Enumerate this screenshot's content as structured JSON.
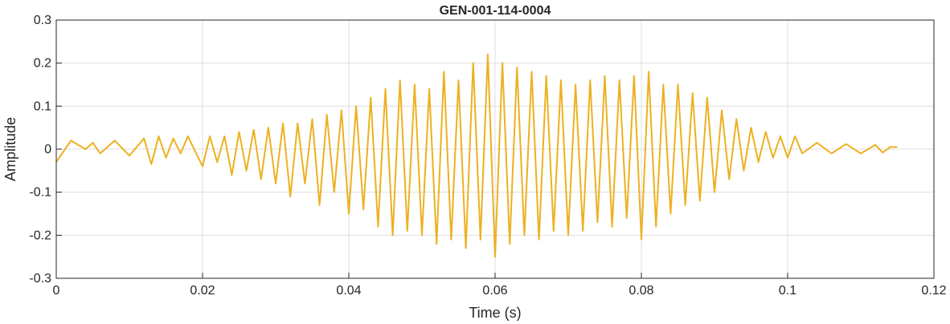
{
  "chart_data": {
    "type": "line",
    "title": "GEN-001-114-0004",
    "xlabel": "Time (s)",
    "ylabel": "Amplitude",
    "xlim": [
      0,
      0.12
    ],
    "ylim": [
      -0.3,
      0.3
    ],
    "x_ticks": [
      0,
      0.02,
      0.04,
      0.06,
      0.08,
      0.1,
      0.12
    ],
    "x_tick_labels": [
      "0",
      "0.02",
      "0.04",
      "0.06",
      "0.08",
      "0.1",
      "0.12"
    ],
    "y_ticks": [
      -0.3,
      -0.2,
      -0.1,
      0,
      0.1,
      0.2,
      0.3
    ],
    "y_tick_labels": [
      "-0.3",
      "-0.2",
      "-0.1",
      "0",
      "0.1",
      "0.2",
      "0.3"
    ],
    "grid": true,
    "line_color": "#EDB120",
    "series": [
      {
        "x": [
          0,
          0.002,
          0.004,
          0.005,
          0.006,
          0.008,
          0.01,
          0.012,
          0.013,
          0.014,
          0.015,
          0.016,
          0.017,
          0.018,
          0.02,
          0.021,
          0.022,
          0.023,
          0.024,
          0.025,
          0.026,
          0.027,
          0.028,
          0.029,
          0.03,
          0.031,
          0.032,
          0.033,
          0.034,
          0.035,
          0.036,
          0.037,
          0.038,
          0.039,
          0.04,
          0.041,
          0.042,
          0.043,
          0.044,
          0.045,
          0.046,
          0.047,
          0.048,
          0.049,
          0.05,
          0.051,
          0.052,
          0.053,
          0.054,
          0.055,
          0.056,
          0.057,
          0.058,
          0.059,
          0.06,
          0.061,
          0.062,
          0.063,
          0.064,
          0.065,
          0.066,
          0.067,
          0.068,
          0.069,
          0.07,
          0.071,
          0.072,
          0.073,
          0.074,
          0.075,
          0.076,
          0.077,
          0.078,
          0.079,
          0.08,
          0.081,
          0.082,
          0.083,
          0.084,
          0.085,
          0.086,
          0.087,
          0.088,
          0.089,
          0.09,
          0.091,
          0.092,
          0.093,
          0.094,
          0.095,
          0.096,
          0.097,
          0.098,
          0.099,
          0.1,
          0.101,
          0.102,
          0.104,
          0.106,
          0.108,
          0.11,
          0.112,
          0.113,
          0.114,
          0.115
        ],
        "y": [
          -0.03,
          0.02,
          0.0,
          0.015,
          -0.01,
          0.02,
          -0.015,
          0.025,
          -0.035,
          0.03,
          -0.02,
          0.025,
          -0.01,
          0.03,
          -0.04,
          0.03,
          -0.03,
          0.03,
          -0.06,
          0.04,
          -0.05,
          0.045,
          -0.07,
          0.05,
          -0.08,
          0.06,
          -0.11,
          0.06,
          -0.08,
          0.07,
          -0.13,
          0.08,
          -0.1,
          0.09,
          -0.15,
          0.1,
          -0.14,
          0.12,
          -0.18,
          0.14,
          -0.2,
          0.16,
          -0.19,
          0.15,
          -0.2,
          0.14,
          -0.22,
          0.18,
          -0.21,
          0.16,
          -0.23,
          0.2,
          -0.21,
          0.22,
          -0.25,
          0.2,
          -0.22,
          0.19,
          -0.2,
          0.18,
          -0.21,
          0.17,
          -0.19,
          0.16,
          -0.2,
          0.15,
          -0.19,
          0.16,
          -0.17,
          0.17,
          -0.18,
          0.16,
          -0.16,
          0.17,
          -0.21,
          0.18,
          -0.18,
          0.15,
          -0.15,
          0.15,
          -0.13,
          0.13,
          -0.12,
          0.12,
          -0.1,
          0.09,
          -0.07,
          0.07,
          -0.05,
          0.05,
          -0.03,
          0.04,
          -0.02,
          0.03,
          -0.02,
          0.03,
          -0.01,
          0.015,
          -0.01,
          0.012,
          -0.01,
          0.01,
          -0.008,
          0.005,
          0.005
        ]
      }
    ]
  }
}
